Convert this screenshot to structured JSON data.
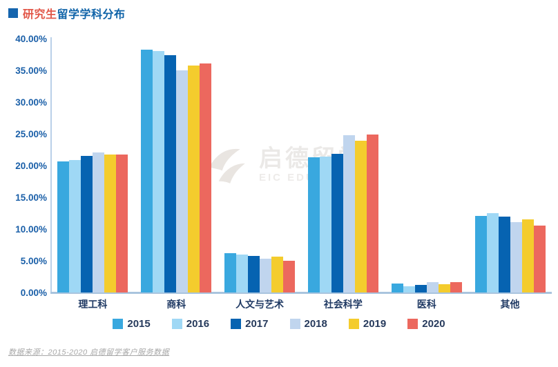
{
  "header": {
    "title_highlight": "研究生",
    "title_rest": "留学学科分布"
  },
  "watermark": {
    "name": "启德留学",
    "subtitle": "EIC EDUCATION"
  },
  "footer": {
    "source": "数据来源：2015-2020 启德留学客户服务数据"
  },
  "colors": {
    "title_highlight": "#e25749",
    "title_rest": "#0f63a8",
    "title_bullet": "#1565ae",
    "axis_line": "#b9d0e8",
    "baseline": "#a9c4de",
    "ytick_text": "#1a5fa8",
    "category_text": "#203a64",
    "legend_text": "#263a5c"
  },
  "chart_data": {
    "type": "bar",
    "title": "研究生留学学科分布",
    "categories": [
      "理工科",
      "商科",
      "人文与艺术",
      "社会科学",
      "医科",
      "其他"
    ],
    "series": [
      {
        "name": "2015",
        "color": "#39a8df",
        "values": [
          20.7,
          38.3,
          6.2,
          21.3,
          1.4,
          12.1
        ]
      },
      {
        "name": "2016",
        "color": "#9fd8f5",
        "values": [
          20.9,
          38.0,
          6.0,
          21.4,
          1.0,
          12.5
        ]
      },
      {
        "name": "2017",
        "color": "#0663b1",
        "values": [
          21.5,
          37.4,
          5.8,
          21.8,
          1.2,
          12.0
        ]
      },
      {
        "name": "2018",
        "color": "#c0d5ee",
        "values": [
          22.1,
          35.0,
          5.3,
          24.8,
          1.6,
          11.1
        ]
      },
      {
        "name": "2019",
        "color": "#f4cc2d",
        "values": [
          21.7,
          35.8,
          5.7,
          23.9,
          1.3,
          11.5
        ]
      },
      {
        "name": "2020",
        "color": "#ec685e",
        "values": [
          21.7,
          36.1,
          5.0,
          24.9,
          1.6,
          10.5
        ]
      }
    ],
    "xlabel": "",
    "ylabel": "",
    "ylim": [
      0,
      40
    ],
    "ytick_step": 5,
    "yticks": [
      "40.00%",
      "35.00%",
      "30.00%",
      "25.00%",
      "20.00%",
      "15.00%",
      "10.00%",
      "5.00%",
      "0.00%"
    ],
    "grid": false,
    "legend_position": "bottom"
  }
}
